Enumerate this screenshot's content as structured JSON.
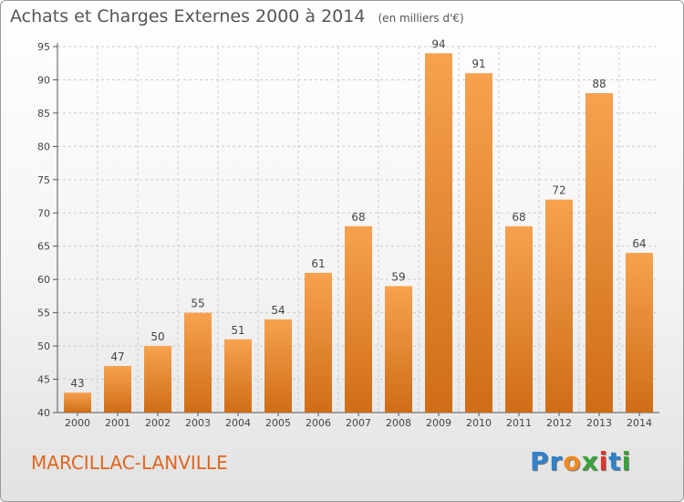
{
  "header": {
    "title": "Achats et Charges Externes 2000 à 2014",
    "unit": "(en milliers d'€)"
  },
  "footer": {
    "place": "MARCILLAC-LANVILLE",
    "logo_letters": [
      {
        "ch": "P",
        "color": "#2f82c8"
      },
      {
        "ch": "r",
        "color": "#2f82c8"
      },
      {
        "ch": "o",
        "color": "#f28a1e"
      },
      {
        "ch": "x",
        "color": "#3aa33a"
      },
      {
        "ch": "i",
        "color": "#e2342c"
      },
      {
        "ch": "t",
        "color": "#2f82c8"
      },
      {
        "ch": "i",
        "color": "#3aa33a"
      }
    ]
  },
  "chart_data": {
    "type": "bar",
    "title": "Achats et Charges Externes 2000 à 2014",
    "subtitle": "(en milliers d'€)",
    "xlabel": "",
    "ylabel": "",
    "categories": [
      "2000",
      "2001",
      "2002",
      "2003",
      "2004",
      "2005",
      "2006",
      "2007",
      "2008",
      "2009",
      "2010",
      "2011",
      "2012",
      "2013",
      "2014"
    ],
    "values": [
      43,
      47,
      50,
      55,
      51,
      54,
      61,
      68,
      59,
      94,
      91,
      68,
      72,
      88,
      64
    ],
    "ylim": [
      40,
      95
    ],
    "yticks": [
      40,
      45,
      50,
      55,
      60,
      65,
      70,
      75,
      80,
      85,
      90,
      95
    ],
    "grid": "horizontal dashed",
    "legend": "none",
    "colors": {
      "bar_top": "#f7a24f",
      "bar_bottom": "#cf6d16",
      "grid": "#cccccc"
    }
  }
}
